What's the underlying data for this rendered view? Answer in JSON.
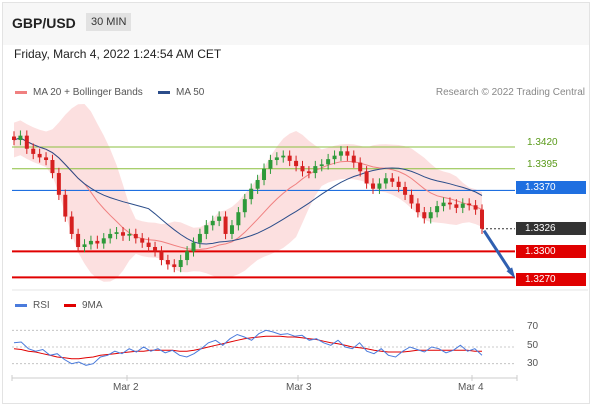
{
  "header": {
    "pair": "GBP/USD",
    "timeframe": "30 MIN"
  },
  "datetime": "Friday, March 4, 2022 1:24:54 AM CET",
  "legend": {
    "ma20": "MA 20 + Bollinger Bands",
    "ma50": "MA 50"
  },
  "credit": "Research © 2022 Trading Central",
  "levels": {
    "r1": "1.3420",
    "r2": "1.3395",
    "pivot": "1.3370",
    "last": "1.3326",
    "s1": "1.3300",
    "s2": "1.3270"
  },
  "rsi_legend": {
    "rsi": "RSI",
    "ma": "9MA"
  },
  "rsi_ticks": [
    "70",
    "50",
    "30"
  ],
  "x_ticks": [
    "Mar 2",
    "Mar 3",
    "Mar 4"
  ],
  "colors": {
    "resistance": "#8bbf3f",
    "pivot": "#1f6fe0",
    "support": "#e00000",
    "last": "#333333",
    "ma20": "#f08080",
    "ma50": "#2b4d8a",
    "band": "#fbd6d6",
    "up_candle": "#2e9a3a",
    "down_candle": "#d62020",
    "rsi": "#4a7bdc",
    "rsi_ma": "#e00000",
    "arrow": "#2f5fb0"
  },
  "chart_data": [
    {
      "type": "candlestick",
      "title": "GBP/USD",
      "timeframe": "30 MIN",
      "x_ticks": [
        "Mar 2",
        "Mar 3",
        "Mar 4"
      ],
      "y_range": [
        1.3259,
        1.3451
      ],
      "close_path": [
        1.3428,
        1.3433,
        1.3418,
        1.3412,
        1.3408,
        1.3405,
        1.339,
        1.3365,
        1.334,
        1.332,
        1.3305,
        1.3308,
        1.3312,
        1.3309,
        1.3315,
        1.332,
        1.3322,
        1.3318,
        1.332,
        1.3315,
        1.331,
        1.3305,
        1.33,
        1.329,
        1.3285,
        1.3282,
        1.329,
        1.33,
        1.331,
        1.332,
        1.333,
        1.3335,
        1.334,
        1.332,
        1.333,
        1.3345,
        1.336,
        1.3372,
        1.3382,
        1.3395,
        1.3405,
        1.3408,
        1.341,
        1.3404,
        1.3398,
        1.3392,
        1.339,
        1.3398,
        1.34,
        1.3406,
        1.341,
        1.3415,
        1.341,
        1.3402,
        1.3392,
        1.3378,
        1.3372,
        1.3378,
        1.3384,
        1.338,
        1.3374,
        1.3365,
        1.3355,
        1.3345,
        1.3338,
        1.3345,
        1.3352,
        1.3356,
        1.3354,
        1.335,
        1.3355,
        1.3353,
        1.3348,
        1.3326
      ],
      "overlays": [
        {
          "name": "MA 20 + Bollinger Bands",
          "kind": "moving-average with bands"
        },
        {
          "name": "MA 50",
          "kind": "moving-average"
        }
      ],
      "horizontal_levels": [
        {
          "value": 1.342,
          "role": "resistance"
        },
        {
          "value": 1.3395,
          "role": "resistance"
        },
        {
          "value": 1.337,
          "role": "pivot"
        },
        {
          "value": 1.3326,
          "role": "last"
        },
        {
          "value": 1.33,
          "role": "support"
        },
        {
          "value": 1.327,
          "role": "support"
        }
      ],
      "projection": {
        "from": 1.3326,
        "to": 1.327
      },
      "credit": "Research © 2022 Trading Central"
    },
    {
      "type": "line",
      "series_names": [
        "RSI",
        "9MA"
      ],
      "y_range": [
        20,
        80
      ],
      "y_ticks": [
        70,
        50,
        30
      ],
      "rsi_path": [
        55,
        56,
        48,
        45,
        47,
        40,
        42,
        35,
        30,
        32,
        28,
        30,
        38,
        40,
        45,
        42,
        48,
        44,
        50,
        45,
        48,
        43,
        46,
        40,
        38,
        42,
        48,
        55,
        58,
        52,
        60,
        65,
        62,
        58,
        66,
        70,
        68,
        65,
        66,
        63,
        64,
        58,
        60,
        55,
        52,
        58,
        50,
        48,
        55,
        45,
        42,
        48,
        40,
        38,
        45,
        50,
        47,
        44,
        50,
        48,
        43,
        46,
        52,
        45,
        48,
        40
      ],
      "ma9_path": [
        48,
        47,
        45,
        44,
        42,
        40,
        38,
        37,
        36,
        36,
        37,
        38,
        40,
        41,
        42,
        43,
        44,
        45,
        45,
        46,
        46,
        46,
        46,
        45,
        45,
        46,
        48,
        50,
        52,
        54,
        56,
        58,
        60,
        61,
        62,
        63,
        63,
        63,
        62,
        62,
        61,
        60,
        59,
        57,
        55,
        54,
        52,
        50,
        49,
        48,
        46,
        45,
        44,
        44,
        44,
        45,
        46,
        46,
        46,
        46,
        46,
        46,
        46,
        46,
        45,
        45
      ]
    }
  ]
}
